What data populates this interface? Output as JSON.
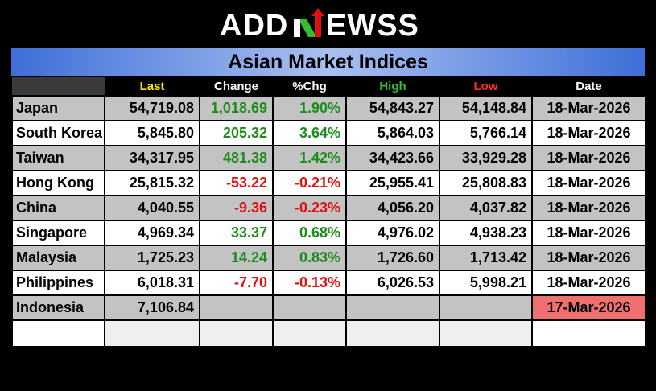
{
  "brand": {
    "name": "ADDNEWSS"
  },
  "title": "Asian Market Indices",
  "colors": {
    "positive": "#1c8c1c",
    "negative": "#e01010",
    "stale_date": "#f07070",
    "title_band": "#3e6fd9"
  },
  "headers": {
    "last": "Last",
    "change": "Change",
    "pchg": "%Chg",
    "high": "High",
    "low": "Low",
    "date": "Date"
  },
  "rows": [
    {
      "market": "Japan",
      "last": "54,719.08",
      "change": "1,018.69",
      "pchg": "1.90%",
      "high": "54,843.27",
      "low": "54,148.84",
      "date": "18-Mar-2026"
    },
    {
      "market": "South Korea",
      "last": "5,845.80",
      "change": "205.32",
      "pchg": "3.64%",
      "high": "5,864.03",
      "low": "5,766.14",
      "date": "18-Mar-2026"
    },
    {
      "market": "Taiwan",
      "last": "34,317.95",
      "change": "481.38",
      "pchg": "1.42%",
      "high": "34,423.66",
      "low": "33,929.28",
      "date": "18-Mar-2026"
    },
    {
      "market": "Hong Kong",
      "last": "25,815.32",
      "change": "-53.22",
      "pchg": "-0.21%",
      "high": "25,955.41",
      "low": "25,808.83",
      "date": "18-Mar-2026"
    },
    {
      "market": "China",
      "last": "4,040.55",
      "change": "-9.36",
      "pchg": "-0.23%",
      "high": "4,056.20",
      "low": "4,037.82",
      "date": "18-Mar-2026"
    },
    {
      "market": "Singapore",
      "last": "4,969.34",
      "change": "33.37",
      "pchg": "0.68%",
      "high": "4,976.02",
      "low": "4,938.23",
      "date": "18-Mar-2026"
    },
    {
      "market": "Malaysia",
      "last": "1,725.23",
      "change": "14.24",
      "pchg": "0.83%",
      "high": "1,726.60",
      "low": "1,713.42",
      "date": "18-Mar-2026"
    },
    {
      "market": "Philippines",
      "last": "6,018.31",
      "change": "-7.70",
      "pchg": "-0.13%",
      "high": "6,026.53",
      "low": "5,998.21",
      "date": "18-Mar-2026"
    },
    {
      "market": "Indonesia",
      "last": "7,106.84",
      "change": "",
      "pchg": "",
      "high": "",
      "low": "",
      "date": "17-Mar-2026"
    }
  ]
}
